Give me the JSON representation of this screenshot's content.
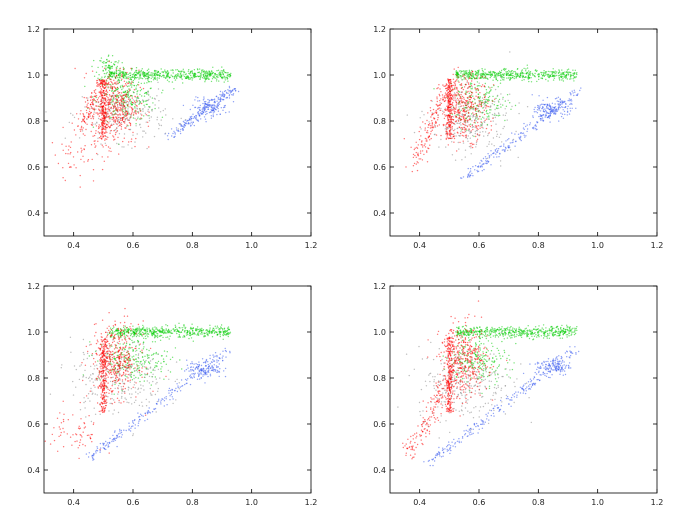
{
  "chart_data": [
    {
      "type": "scatter",
      "panel": "top-left",
      "xlim": [
        0.3,
        1.2
      ],
      "ylim": [
        0.3,
        1.2
      ],
      "x_ticks": [
        "0.4",
        "0.6",
        "0.8",
        "1.0",
        "1.2"
      ],
      "y_ticks": [
        "0.4",
        "0.6",
        "0.8",
        "1.0",
        "1.2"
      ],
      "grid": false,
      "series": [
        {
          "color": "#00cc00",
          "regions": [
            {
              "kind": "band",
              "x": [
                0.52,
                0.93
              ],
              "y": 1.0,
              "spread": 0.012,
              "n": 520
            },
            {
              "kind": "cloud",
              "cx": 0.58,
              "cy": 0.9,
              "sx": 0.05,
              "sy": 0.05,
              "n": 240
            },
            {
              "kind": "cloud",
              "cx": 0.52,
              "cy": 1.03,
              "sx": 0.02,
              "sy": 0.03,
              "n": 90
            }
          ]
        },
        {
          "color": "#3355ee",
          "regions": [
            {
              "kind": "line",
              "from": [
                0.72,
                0.73
              ],
              "to": [
                0.94,
                0.94
              ],
              "spread": 0.01,
              "n": 180
            },
            {
              "kind": "cloud",
              "cx": 0.86,
              "cy": 0.86,
              "sx": 0.03,
              "sy": 0.02,
              "n": 120
            }
          ]
        },
        {
          "color": "#888888",
          "regions": [
            {
              "kind": "cloud",
              "cx": 0.57,
              "cy": 0.83,
              "sx": 0.07,
              "sy": 0.06,
              "n": 260
            }
          ]
        },
        {
          "color": "#ff0000",
          "regions": [
            {
              "kind": "vline",
              "x": 0.5,
              "y": [
                0.72,
                0.98
              ],
              "spread": 0.006,
              "n": 200
            },
            {
              "kind": "cloud",
              "cx": 0.54,
              "cy": 0.86,
              "sx": 0.04,
              "sy": 0.08,
              "n": 420
            },
            {
              "kind": "line",
              "from": [
                0.42,
                0.76
              ],
              "to": [
                0.5,
                0.98
              ],
              "spread": 0.012,
              "n": 110
            },
            {
              "kind": "cloud",
              "cx": 0.42,
              "cy": 0.66,
              "sx": 0.05,
              "sy": 0.06,
              "n": 60
            }
          ]
        }
      ]
    },
    {
      "type": "scatter",
      "panel": "top-right",
      "xlim": [
        0.3,
        1.2
      ],
      "ylim": [
        0.3,
        1.2
      ],
      "x_ticks": [
        "0.4",
        "0.6",
        "0.8",
        "1.0",
        "1.2"
      ],
      "y_ticks": [
        "0.4",
        "0.6",
        "0.8",
        "1.0",
        "1.2"
      ],
      "grid": false,
      "series": [
        {
          "color": "#00cc00",
          "regions": [
            {
              "kind": "band",
              "x": [
                0.52,
                0.93
              ],
              "y": 1.0,
              "spread": 0.012,
              "n": 500
            },
            {
              "kind": "cloud",
              "cx": 0.6,
              "cy": 0.88,
              "sx": 0.05,
              "sy": 0.05,
              "n": 200
            }
          ]
        },
        {
          "color": "#3355ee",
          "regions": [
            {
              "kind": "line",
              "from": [
                0.55,
                0.55
              ],
              "to": [
                0.94,
                0.94
              ],
              "spread": 0.01,
              "n": 220
            },
            {
              "kind": "cloud",
              "cx": 0.85,
              "cy": 0.85,
              "sx": 0.03,
              "sy": 0.02,
              "n": 130
            }
          ]
        },
        {
          "color": "#888888",
          "regions": [
            {
              "kind": "cloud",
              "cx": 0.57,
              "cy": 0.8,
              "sx": 0.07,
              "sy": 0.07,
              "n": 260
            }
          ]
        },
        {
          "color": "#ff0000",
          "regions": [
            {
              "kind": "vline",
              "x": 0.5,
              "y": [
                0.72,
                0.98
              ],
              "spread": 0.006,
              "n": 190
            },
            {
              "kind": "cloud",
              "cx": 0.55,
              "cy": 0.86,
              "sx": 0.04,
              "sy": 0.07,
              "n": 400
            },
            {
              "kind": "line",
              "from": [
                0.38,
                0.6
              ],
              "to": [
                0.5,
                0.98
              ],
              "spread": 0.014,
              "n": 150
            }
          ]
        }
      ]
    },
    {
      "type": "scatter",
      "panel": "bottom-left",
      "xlim": [
        0.3,
        1.2
      ],
      "ylim": [
        0.3,
        1.2
      ],
      "x_ticks": [
        "0.4",
        "0.6",
        "0.8",
        "1.0",
        "1.2"
      ],
      "y_ticks": [
        "0.4",
        "0.6",
        "0.8",
        "1.0",
        "1.2"
      ],
      "grid": false,
      "series": [
        {
          "color": "#00cc00",
          "regions": [
            {
              "kind": "band",
              "x": [
                0.52,
                0.93
              ],
              "y": 1.0,
              "spread": 0.012,
              "n": 520
            },
            {
              "kind": "cloud",
              "cx": 0.6,
              "cy": 0.88,
              "sx": 0.06,
              "sy": 0.05,
              "n": 230
            }
          ]
        },
        {
          "color": "#3355ee",
          "regions": [
            {
              "kind": "line",
              "from": [
                0.45,
                0.45
              ],
              "to": [
                0.93,
                0.93
              ],
              "spread": 0.01,
              "n": 220
            },
            {
              "kind": "cloud",
              "cx": 0.84,
              "cy": 0.84,
              "sx": 0.03,
              "sy": 0.02,
              "n": 120
            }
          ]
        },
        {
          "color": "#888888",
          "regions": [
            {
              "kind": "cloud",
              "cx": 0.55,
              "cy": 0.8,
              "sx": 0.08,
              "sy": 0.08,
              "n": 280
            }
          ]
        },
        {
          "color": "#ff0000",
          "regions": [
            {
              "kind": "vline",
              "x": 0.5,
              "y": [
                0.65,
                0.98
              ],
              "spread": 0.006,
              "n": 220
            },
            {
              "kind": "cloud",
              "cx": 0.54,
              "cy": 0.88,
              "sx": 0.04,
              "sy": 0.08,
              "n": 400
            },
            {
              "kind": "cloud",
              "cx": 0.4,
              "cy": 0.56,
              "sx": 0.05,
              "sy": 0.06,
              "n": 70
            }
          ]
        }
      ]
    },
    {
      "type": "scatter",
      "panel": "bottom-right",
      "xlim": [
        0.3,
        1.2
      ],
      "ylim": [
        0.3,
        1.2
      ],
      "x_ticks": [
        "0.4",
        "0.6",
        "0.8",
        "1.0",
        "1.2"
      ],
      "y_ticks": [
        "0.4",
        "0.6",
        "0.8",
        "1.0",
        "1.2"
      ],
      "grid": false,
      "series": [
        {
          "color": "#00cc00",
          "regions": [
            {
              "kind": "band",
              "x": [
                0.52,
                0.93
              ],
              "y": 1.0,
              "spread": 0.012,
              "n": 500
            },
            {
              "kind": "cloud",
              "cx": 0.6,
              "cy": 0.88,
              "sx": 0.05,
              "sy": 0.05,
              "n": 210
            }
          ]
        },
        {
          "color": "#3355ee",
          "regions": [
            {
              "kind": "line",
              "from": [
                0.42,
                0.42
              ],
              "to": [
                0.93,
                0.93
              ],
              "spread": 0.01,
              "n": 230
            },
            {
              "kind": "cloud",
              "cx": 0.85,
              "cy": 0.85,
              "sx": 0.03,
              "sy": 0.02,
              "n": 120
            }
          ]
        },
        {
          "color": "#888888",
          "regions": [
            {
              "kind": "cloud",
              "cx": 0.55,
              "cy": 0.78,
              "sx": 0.08,
              "sy": 0.08,
              "n": 280
            }
          ]
        },
        {
          "color": "#ff0000",
          "regions": [
            {
              "kind": "vline",
              "x": 0.5,
              "y": [
                0.65,
                0.98
              ],
              "spread": 0.006,
              "n": 210
            },
            {
              "kind": "cloud",
              "cx": 0.55,
              "cy": 0.87,
              "sx": 0.04,
              "sy": 0.08,
              "n": 400
            },
            {
              "kind": "line",
              "from": [
                0.36,
                0.46
              ],
              "to": [
                0.5,
                0.8
              ],
              "spread": 0.016,
              "n": 150
            }
          ]
        }
      ]
    }
  ]
}
